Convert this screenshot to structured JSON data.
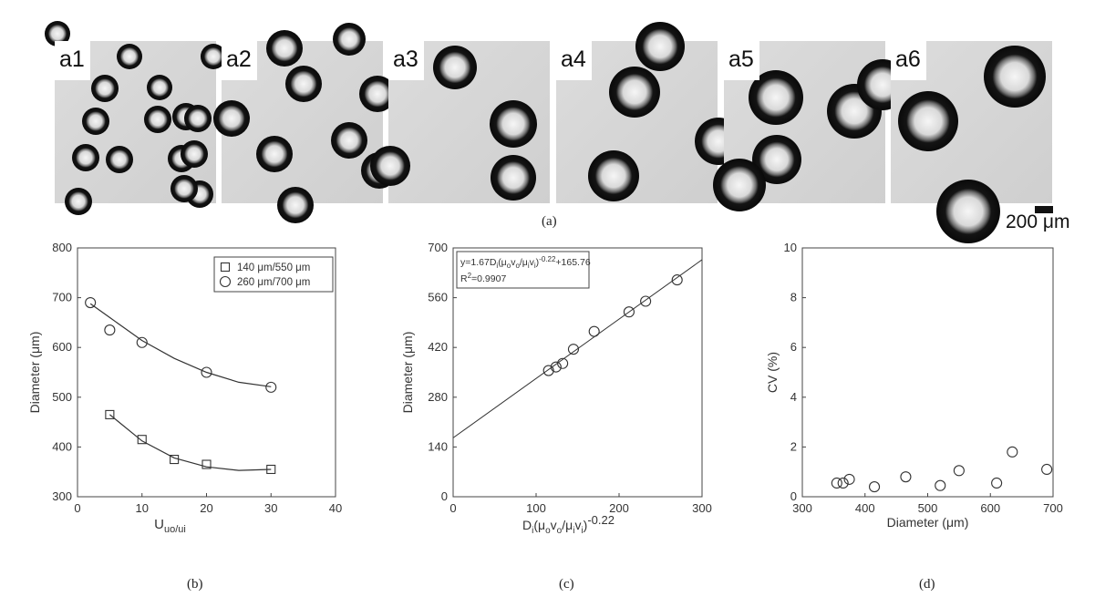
{
  "figure": {
    "panels": [
      {
        "label": "a1",
        "drops": [
          [
            3,
            -8,
            14
          ],
          [
            82,
            17,
            14
          ],
          [
            115,
            51,
            14
          ],
          [
            174,
            17,
            14
          ],
          [
            55,
            52,
            15
          ],
          [
            45,
            88,
            15
          ],
          [
            113,
            86,
            15
          ],
          [
            144,
            83,
            15
          ],
          [
            157,
            85,
            15
          ],
          [
            34,
            128,
            15
          ],
          [
            71,
            130,
            15
          ],
          [
            139,
            129,
            15
          ],
          [
            153,
            124,
            15
          ],
          [
            26,
            176,
            15
          ],
          [
            159,
            168,
            15
          ],
          [
            142,
            162,
            15
          ]
        ]
      },
      {
        "label": "a2",
        "drops": [
          [
            69,
            8,
            20
          ],
          [
            140,
            -2,
            18
          ],
          [
            90,
            47,
            20
          ],
          [
            171,
            58,
            20
          ],
          [
            11,
            85,
            20
          ],
          [
            58,
            124,
            20
          ],
          [
            140,
            109,
            20
          ],
          [
            173,
            142,
            20
          ],
          [
            81,
            180,
            20
          ]
        ]
      },
      {
        "label": "a3",
        "drops": [
          [
            73,
            29,
            24
          ],
          [
            137,
            91,
            26
          ],
          [
            137,
            150,
            25
          ],
          [
            2,
            137,
            22
          ]
        ]
      },
      {
        "label": "a4",
        "drops": [
          [
            114,
            6,
            27
          ],
          [
            86,
            56,
            28
          ],
          [
            63,
            148,
            28
          ],
          [
            178,
            110,
            26
          ]
        ]
      },
      {
        "label": "a5",
        "drops": [
          [
            57,
            62,
            30
          ],
          [
            143,
            77,
            30
          ],
          [
            58,
            130,
            27
          ],
          [
            17,
            158,
            29
          ],
          [
            174,
            48,
            28
          ]
        ]
      },
      {
        "label": "a6",
        "drops": [
          [
            136,
            39,
            34
          ],
          [
            41,
            88,
            33
          ],
          [
            85,
            187,
            35
          ]
        ]
      }
    ],
    "captions": {
      "a": "(a)",
      "b": "(b)",
      "c": "(c)",
      "d": "(d)"
    },
    "scale_bar_label": "200 μm"
  },
  "chart_data": [
    {
      "type": "scatter",
      "id": "b",
      "xlabel": "U",
      "xlabel_sub": "uo/ui",
      "ylabel": "Diameter (μm)",
      "xlim": [
        0,
        40
      ],
      "ylim": [
        300,
        800
      ],
      "xticks": [
        0,
        10,
        20,
        30,
        40
      ],
      "yticks": [
        300,
        400,
        500,
        600,
        700,
        800
      ],
      "legend": {
        "placement": "top-right",
        "entries": [
          "140 μm/550 μm",
          "260 μm/700 μm"
        ]
      },
      "series": [
        {
          "name": "140 μm/550 μm",
          "marker": "square",
          "x": [
            5,
            10,
            15,
            20,
            30
          ],
          "y": [
            465,
            415,
            375,
            365,
            355
          ],
          "fit": [
            [
              5,
              465
            ],
            [
              10,
              412
            ],
            [
              15,
              378
            ],
            [
              20,
              360
            ],
            [
              25,
              353
            ],
            [
              30,
              355
            ]
          ]
        },
        {
          "name": "260 μm/700 μm",
          "marker": "circle",
          "x": [
            2,
            5,
            10,
            20,
            30
          ],
          "y": [
            690,
            635,
            610,
            550,
            520
          ],
          "fit": [
            [
              2,
              688
            ],
            [
              5,
              660
            ],
            [
              10,
              614
            ],
            [
              15,
              578
            ],
            [
              20,
              550
            ],
            [
              25,
              530
            ],
            [
              30,
              521
            ]
          ]
        }
      ]
    },
    {
      "type": "scatter",
      "id": "c",
      "ylabel": "Diameter (μm)",
      "xlim": [
        0,
        300
      ],
      "ylim": [
        0,
        700
      ],
      "xticks": [
        0,
        100,
        200,
        300
      ],
      "yticks": [
        0,
        140,
        280,
        420,
        560,
        700
      ],
      "annotation": [
        "y=1.67D",
        "(μ",
        "v",
        "/μ",
        "v",
        ")",
        "-0.22",
        "+165.76",
        "R",
        "2",
        "=0.9907"
      ],
      "xlabel_parts": [
        "D",
        "i",
        "(μ",
        "o",
        "v",
        "o",
        "/μ",
        "i",
        "v",
        "i",
        ")",
        "-0.22"
      ],
      "x": [
        115,
        124,
        132,
        145,
        170,
        212,
        232,
        270
      ],
      "y": [
        355,
        365,
        375,
        415,
        465,
        520,
        550,
        610
      ],
      "fit": {
        "slope": 1.67,
        "intercept": 165.76
      }
    },
    {
      "type": "scatter",
      "id": "d",
      "xlabel": "Diameter (μm)",
      "ylabel": "CV (%)",
      "xlim": [
        300,
        700
      ],
      "ylim": [
        0,
        10
      ],
      "xticks": [
        300,
        400,
        500,
        600,
        700
      ],
      "yticks": [
        0,
        2,
        4,
        6,
        8,
        10
      ],
      "x": [
        355,
        365,
        375,
        415,
        465,
        520,
        550,
        610,
        635,
        690
      ],
      "y": [
        0.55,
        0.55,
        0.7,
        0.4,
        0.8,
        0.45,
        1.05,
        0.55,
        1.8,
        1.1
      ]
    }
  ]
}
